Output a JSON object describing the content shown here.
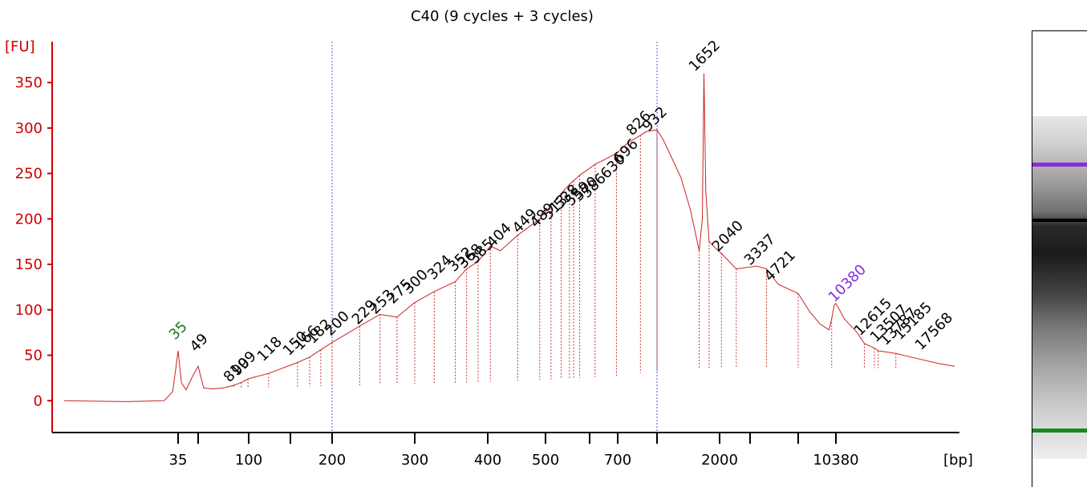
{
  "chart_data": {
    "type": "line",
    "title": "C40 (9 cycles + 3 cycles)",
    "ylabel": "[FU]",
    "xlabel": "[bp]",
    "ylim": [
      -35,
      395
    ],
    "y_ticks": [
      0,
      50,
      100,
      150,
      200,
      250,
      300,
      350
    ],
    "x_ticks": [
      "35",
      "100",
      "200",
      "300",
      "400",
      "500",
      "700",
      "2000",
      "10380"
    ],
    "marker_lower": "35",
    "marker_upper": "10380",
    "peak_labels": [
      "35",
      "49",
      "81",
      "90",
      "99",
      "118",
      "150",
      "166",
      "182",
      "200",
      "229",
      "253",
      "275",
      "300",
      "324",
      "352",
      "368",
      "385",
      "404",
      "449",
      "489",
      "513",
      "538",
      "559",
      "570",
      "586",
      "630",
      "696",
      "826",
      "932",
      "1652",
      "2040",
      "3337",
      "4721",
      "10380",
      "12615",
      "13507",
      "13787",
      "15185",
      "17568"
    ],
    "series": [
      {
        "x_bp": [
          10,
          20,
          30,
          33,
          35,
          37,
          40,
          45,
          49,
          53,
          60,
          70,
          81,
          90,
          99,
          118,
          150,
          166,
          182,
          200,
          229,
          253,
          275,
          300,
          324,
          352,
          368,
          385,
          404,
          420,
          449,
          489,
          513,
          538,
          559,
          570,
          586,
          630,
          696,
          750,
          826,
          860,
          932,
          1000,
          1100,
          1250,
          1400,
          1560,
          1620,
          1652,
          1690,
          1760,
          1900,
          2040,
          2400,
          3000,
          3337,
          3800,
          4721,
          6000,
          7500,
          9000,
          9500,
          10000,
          10380,
          11000,
          12000,
          12615,
          13507,
          13787,
          15185,
          16500,
          17568,
          18500,
          19500
        ],
        "y_fu": [
          0,
          -1,
          0,
          10,
          55,
          20,
          12,
          28,
          38,
          14,
          13,
          14,
          17,
          20,
          24,
          30,
          42,
          48,
          56,
          64,
          82,
          95,
          92,
          108,
          120,
          131,
          145,
          153,
          170,
          165,
          182,
          200,
          215,
          228,
          238,
          242,
          248,
          260,
          272,
          283,
          292,
          296,
          298,
          288,
          270,
          245,
          210,
          165,
          200,
          360,
          230,
          175,
          168,
          162,
          145,
          148,
          145,
          128,
          118,
          98,
          84,
          78,
          90,
          105,
          107,
          90,
          75,
          63,
          58,
          55,
          52,
          48,
          45,
          41,
          38
        ]
      }
    ]
  }
}
